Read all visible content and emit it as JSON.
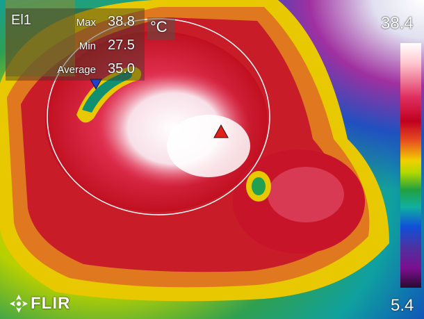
{
  "measurement": {
    "tool": "El1",
    "max_label": "Max",
    "max_value": "38.8",
    "min_label": "Min",
    "min_value": "27.5",
    "avg_label": "Average",
    "avg_value": "35.0",
    "unit": "°C"
  },
  "scale": {
    "max": "38.4",
    "min": "5.4"
  },
  "brand": {
    "logo_text": "FLIR"
  },
  "markers": {
    "hot_color": "#e0201a",
    "cold_color": "#2040d0"
  }
}
